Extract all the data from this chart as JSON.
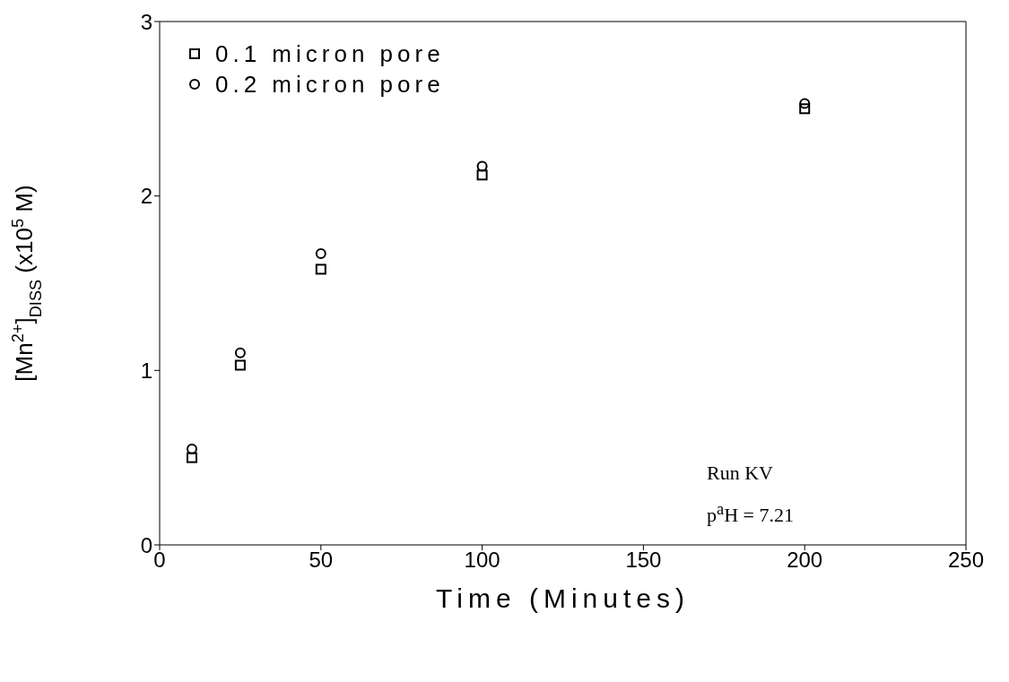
{
  "chart_data": {
    "type": "scatter",
    "xlabel": "Time (Minutes)",
    "ylabel": "[Mn$^{2+}$]$_{DISS}$ (x10$^{5}$ M)",
    "x": [
      10,
      25,
      50,
      100,
      200
    ],
    "series": [
      {
        "name": "0.1 micron pore",
        "color": "#000000",
        "marker": "square",
        "values": [
          0.5,
          1.03,
          1.58,
          2.12,
          2.5
        ]
      },
      {
        "name": "0.2 micron pore",
        "color": "#000000",
        "marker": "circle",
        "values": [
          0.55,
          1.1,
          1.67,
          2.17,
          2.53
        ]
      }
    ],
    "xlim": [
      0,
      250
    ],
    "xticks": [
      0,
      50,
      100,
      150,
      200,
      250
    ],
    "ylim": [
      0,
      3
    ],
    "yticks": [
      0,
      1,
      2,
      3
    ],
    "grid": false,
    "legend": "top left",
    "annotations": [
      "Run KV",
      "p$^{a}$H = 7.21"
    ]
  }
}
